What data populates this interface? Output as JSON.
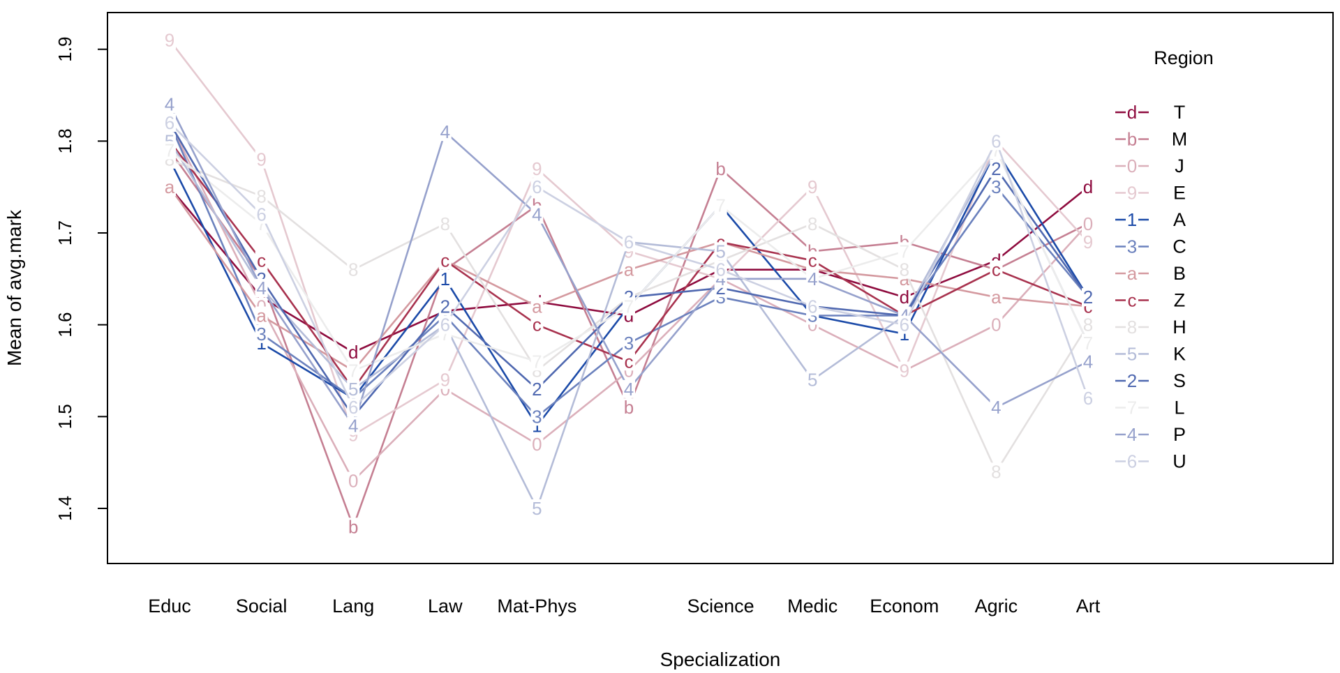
{
  "chart_data": {
    "type": "line",
    "xlabel": "Specialization",
    "ylabel": "Mean of avg.mark",
    "categories": [
      "Educ",
      "Social",
      "Lang",
      "Law",
      "Mat-Phys",
      "",
      "Science",
      "Medic",
      "Econom",
      "Agric",
      "Art"
    ],
    "ylim": [
      1.34,
      1.94
    ],
    "yticks": [
      "1.4",
      "1.5",
      "1.6",
      "1.7",
      "1.8",
      "1.9"
    ],
    "grid": false,
    "legend_title": "Region",
    "legend_position": "right",
    "series": [
      {
        "name": "T",
        "symbol": "d",
        "color": "#8e0b3e",
        "values": [
          1.75,
          1.63,
          1.57,
          1.615,
          1.625,
          1.61,
          1.66,
          1.66,
          1.63,
          1.67,
          1.75
        ]
      },
      {
        "name": "M",
        "symbol": "b",
        "color": "#c57f92",
        "values": [
          1.79,
          1.65,
          1.38,
          1.66,
          1.73,
          1.51,
          1.77,
          1.68,
          1.69,
          1.66,
          1.71
        ]
      },
      {
        "name": "J",
        "symbol": "0",
        "color": "#dbafba",
        "values": [
          1.82,
          1.62,
          1.43,
          1.53,
          1.47,
          1.55,
          1.65,
          1.6,
          1.55,
          1.6,
          1.71
        ]
      },
      {
        "name": "E",
        "symbol": "9",
        "color": "#e5c9d0",
        "values": [
          1.91,
          1.78,
          1.48,
          1.54,
          1.77,
          1.68,
          1.65,
          1.75,
          1.55,
          1.8,
          1.69
        ]
      },
      {
        "name": "A",
        "symbol": "1",
        "color": "#1b4aa8",
        "values": [
          1.78,
          1.58,
          1.52,
          1.65,
          1.49,
          1.62,
          1.73,
          1.61,
          1.59,
          1.79,
          1.63
        ]
      },
      {
        "name": "C",
        "symbol": "3",
        "color": "#6b81bd",
        "values": [
          1.82,
          1.59,
          1.52,
          1.61,
          1.5,
          1.58,
          1.63,
          1.61,
          1.61,
          1.75,
          1.63
        ]
      },
      {
        "name": "B",
        "symbol": "a",
        "color": "#d4999f",
        "values": [
          1.75,
          1.61,
          1.55,
          1.67,
          1.62,
          1.66,
          1.69,
          1.66,
          1.65,
          1.63,
          1.62
        ]
      },
      {
        "name": "Z",
        "symbol": "c",
        "color": "#a8324e",
        "values": [
          1.8,
          1.67,
          1.53,
          1.67,
          1.6,
          1.56,
          1.69,
          1.67,
          1.61,
          1.66,
          1.62
        ]
      },
      {
        "name": "H",
        "symbol": "8",
        "color": "#e3e0e0",
        "values": [
          1.78,
          1.74,
          1.66,
          1.71,
          1.55,
          1.63,
          1.67,
          1.71,
          1.66,
          1.44,
          1.6
        ]
      },
      {
        "name": "K",
        "symbol": "5",
        "color": "#b4bcd8",
        "values": [
          1.8,
          1.64,
          1.53,
          1.6,
          1.4,
          1.69,
          1.68,
          1.54,
          1.61,
          1.79,
          1.58
        ]
      },
      {
        "name": "S",
        "symbol": "2",
        "color": "#4f68b0",
        "values": [
          1.82,
          1.65,
          1.5,
          1.62,
          1.53,
          1.63,
          1.64,
          1.62,
          1.61,
          1.77,
          1.63
        ]
      },
      {
        "name": "L",
        "symbol": "7",
        "color": "#ececec",
        "values": [
          1.79,
          1.71,
          1.55,
          1.59,
          1.56,
          1.62,
          1.73,
          1.65,
          1.68,
          1.79,
          1.58
        ]
      },
      {
        "name": "P",
        "symbol": "4",
        "color": "#96a1cc",
        "values": [
          1.84,
          1.64,
          1.49,
          1.81,
          1.72,
          1.53,
          1.65,
          1.65,
          1.61,
          1.51,
          1.56
        ]
      },
      {
        "name": "U",
        "symbol": "6",
        "color": "#ccd0e2",
        "values": [
          1.82,
          1.72,
          1.51,
          1.6,
          1.75,
          1.69,
          1.66,
          1.62,
          1.6,
          1.8,
          1.52
        ]
      }
    ]
  }
}
